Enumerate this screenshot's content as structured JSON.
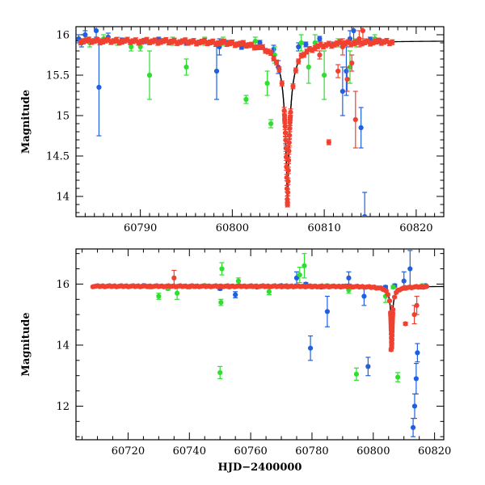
{
  "chart_data": [
    {
      "type": "scatter",
      "title": "",
      "xlabel": "",
      "ylabel": "Magnitude",
      "xlim": [
        60783,
        60823
      ],
      "ylim": [
        16.1,
        13.75
      ],
      "y_inverted": true,
      "grid": false,
      "x_ticks": [
        60790,
        60800,
        60810,
        60820
      ],
      "y_ticks": [
        14,
        14.5,
        15,
        15.5,
        16
      ],
      "model_curve": {
        "color": "#000000",
        "base": 15.93,
        "peak_time": 60806.0,
        "peak_mag": 13.9,
        "x_start": 60783,
        "x_end": 60823
      },
      "series": [
        {
          "color": "#2060e0",
          "points": [
            [
              60783.3,
              15.95
            ],
            [
              60783.6,
              15.9
            ],
            [
              60784.0,
              16.0
            ],
            [
              60785.2,
              16.05
            ],
            [
              60785.5,
              15.35
            ],
            [
              60786.5,
              15.97
            ],
            [
              60788.0,
              15.93
            ],
            [
              60790.5,
              15.92
            ],
            [
              60792.0,
              15.94
            ],
            [
              60795.0,
              15.9
            ],
            [
              60798.3,
              15.55
            ],
            [
              60798.6,
              15.85
            ],
            [
              60799.5,
              15.9
            ],
            [
              60801.0,
              15.85
            ],
            [
              60803.0,
              15.9
            ],
            [
              60804.5,
              15.82
            ],
            [
              60805.0,
              15.6
            ],
            [
              60807.2,
              15.85
            ],
            [
              60808.0,
              15.88
            ],
            [
              60809.5,
              15.95
            ],
            [
              60811.0,
              15.88
            ],
            [
              60812.0,
              15.3
            ],
            [
              60812.4,
              15.55
            ],
            [
              60812.8,
              15.95
            ],
            [
              60813.2,
              16.05
            ],
            [
              60814.0,
              14.85
            ],
            [
              60814.4,
              13.75
            ],
            [
              60815.0,
              15.94
            ],
            [
              60816.0,
              15.92
            ]
          ],
          "errors": [
            0.05,
            0.05,
            0.05,
            0.08,
            0.6,
            0.05,
            0.03,
            0.03,
            0.03,
            0.03,
            0.35,
            0.1,
            0.03,
            0.03,
            0.03,
            0.05,
            0.08,
            0.05,
            0.03,
            0.03,
            0.03,
            0.3,
            0.3,
            0.1,
            0.15,
            0.25,
            0.3,
            0.03,
            0.03
          ]
        },
        {
          "color": "#30dd30",
          "points": [
            [
              60784.5,
              15.9
            ],
            [
              60786.0,
              15.95
            ],
            [
              60787.5,
              15.92
            ],
            [
              60789.0,
              15.85
            ],
            [
              60790.0,
              15.85
            ],
            [
              60791.0,
              15.5
            ],
            [
              60793.5,
              15.92
            ],
            [
              60795.0,
              15.6
            ],
            [
              60797.0,
              15.92
            ],
            [
              60799.0,
              15.92
            ],
            [
              60801.5,
              15.2
            ],
            [
              60802.5,
              15.92
            ],
            [
              60803.8,
              15.4
            ],
            [
              60804.2,
              14.9
            ],
            [
              60804.6,
              15.75
            ],
            [
              60807.5,
              15.9
            ],
            [
              60808.3,
              15.6
            ],
            [
              60809.0,
              15.9
            ],
            [
              60810.0,
              15.5
            ],
            [
              60811.5,
              15.9
            ],
            [
              60812.8,
              15.6
            ],
            [
              60813.5,
              15.9
            ],
            [
              60815.5,
              15.95
            ]
          ],
          "errors": [
            0.05,
            0.05,
            0.05,
            0.05,
            0.05,
            0.3,
            0.05,
            0.1,
            0.05,
            0.05,
            0.05,
            0.05,
            0.15,
            0.05,
            0.1,
            0.1,
            0.2,
            0.1,
            0.3,
            0.05,
            0.2,
            0.05,
            0.05
          ]
        },
        {
          "color": "#f04030",
          "points": [
            [
              60809.5,
              15.75
            ],
            [
              60810.5,
              14.67
            ],
            [
              60811.5,
              15.55
            ],
            [
              60812.0,
              15.85
            ],
            [
              60812.5,
              15.45
            ],
            [
              60813.0,
              15.65
            ],
            [
              60813.4,
              14.95
            ],
            [
              60813.8,
              15.95
            ],
            [
              60814.2,
              16.05
            ]
          ],
          "errors": [
            0.05,
            0.03,
            0.08,
            0.1,
            0.15,
            0.1,
            0.35,
            0.1,
            0.1
          ],
          "dense_band": {
            "x_start": 60783.5,
            "x_end": 60817.5,
            "follows_model": true,
            "spacing": 0.3
          }
        }
      ]
    },
    {
      "type": "scatter",
      "title": "",
      "xlabel": "HJD−2400000",
      "ylabel": "Magnitude",
      "xlim": [
        60703,
        60823
      ],
      "ylim": [
        17.15,
        10.9
      ],
      "y_inverted": true,
      "grid": false,
      "x_ticks": [
        60720,
        60740,
        60760,
        60780,
        60800,
        60820
      ],
      "y_ticks": [
        12,
        14,
        16
      ],
      "model_curve": {
        "color": "#000000",
        "base": 15.93,
        "peak_time": 60806.0,
        "peak_mag": 13.9,
        "x_start": 60708,
        "x_end": 60823
      },
      "series": [
        {
          "color": "#2060e0",
          "points": [
            [
              60725.0,
              15.95
            ],
            [
              60733.0,
              15.9
            ],
            [
              60742.0,
              15.92
            ],
            [
              60750.0,
              15.85
            ],
            [
              60755.0,
              15.65
            ],
            [
              60762.0,
              15.9
            ],
            [
              60770.0,
              15.95
            ],
            [
              60775.0,
              16.2
            ],
            [
              60778.0,
              16.0
            ],
            [
              60779.5,
              13.9
            ],
            [
              60783.0,
              15.9
            ],
            [
              60785.0,
              15.1
            ],
            [
              60790.0,
              15.93
            ],
            [
              60792.0,
              16.2
            ],
            [
              60797.0,
              15.6
            ],
            [
              60798.3,
              13.3
            ],
            [
              60804.0,
              15.9
            ],
            [
              60807.0,
              15.95
            ],
            [
              60810.0,
              16.1
            ],
            [
              60812.0,
              16.5
            ],
            [
              60813.0,
              11.3
            ],
            [
              60813.5,
              12.0
            ],
            [
              60814.0,
              12.9
            ],
            [
              60814.4,
              13.75
            ],
            [
              60815.5,
              15.9
            ],
            [
              60817.0,
              15.95
            ]
          ],
          "errors": [
            0.03,
            0.03,
            0.03,
            0.05,
            0.1,
            0.03,
            0.03,
            0.2,
            0.05,
            0.4,
            0.05,
            0.5,
            0.03,
            0.2,
            0.3,
            0.3,
            0.05,
            0.05,
            0.3,
            0.6,
            0.3,
            0.4,
            0.5,
            0.3,
            0.05,
            0.05
          ]
        },
        {
          "color": "#30dd30",
          "points": [
            [
              60727.0,
              15.9
            ],
            [
              60730.0,
              15.6
            ],
            [
              60733.0,
              15.85
            ],
            [
              60736.0,
              15.7
            ],
            [
              60740.0,
              15.9
            ],
            [
              60745.0,
              15.95
            ],
            [
              60750.0,
              13.1
            ],
            [
              60750.3,
              15.4
            ],
            [
              60750.6,
              16.5
            ],
            [
              60753.0,
              15.9
            ],
            [
              60756.0,
              16.1
            ],
            [
              60760.0,
              15.92
            ],
            [
              60766.0,
              15.75
            ],
            [
              60772.0,
              15.9
            ],
            [
              60776.0,
              16.3
            ],
            [
              60777.5,
              16.6
            ],
            [
              60780.0,
              15.9
            ],
            [
              60785.0,
              15.95
            ],
            [
              60792.0,
              15.8
            ],
            [
              60794.5,
              13.05
            ],
            [
              60799.0,
              15.9
            ],
            [
              60804.0,
              15.6
            ],
            [
              60806.5,
              15.9
            ],
            [
              60808.0,
              12.95
            ],
            [
              60812.0,
              15.9
            ],
            [
              60816.0,
              15.95
            ]
          ],
          "errors": [
            0.05,
            0.1,
            0.05,
            0.2,
            0.05,
            0.05,
            0.2,
            0.1,
            0.2,
            0.05,
            0.1,
            0.05,
            0.1,
            0.05,
            0.25,
            0.4,
            0.05,
            0.05,
            0.1,
            0.2,
            0.05,
            0.2,
            0.05,
            0.15,
            0.05,
            0.05
          ]
        },
        {
          "color": "#f04030",
          "points": [
            [
              60735.0,
              16.2
            ],
            [
              60805.8,
              13.85
            ],
            [
              60806.0,
              15.0
            ],
            [
              60810.5,
              14.7
            ],
            [
              60813.4,
              15.0
            ],
            [
              60814.2,
              15.3
            ]
          ],
          "errors": [
            0.25,
            0.05,
            0.3,
            0.05,
            0.3,
            0.3
          ],
          "dense_band": {
            "x_start": 60708.5,
            "x_end": 60817.5,
            "follows_model": true,
            "spacing": 0.55
          }
        }
      ]
    }
  ]
}
